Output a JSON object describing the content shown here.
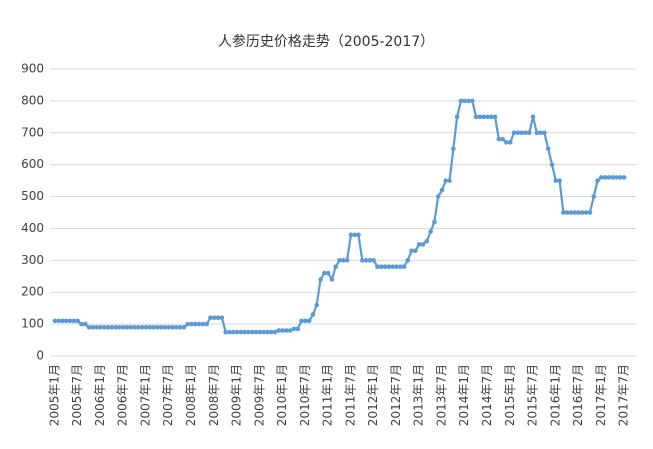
{
  "chart_data": {
    "type": "line",
    "title": "人参历史价格走势（2005-2017）",
    "categories": [
      "2005年1月",
      null,
      null,
      null,
      null,
      null,
      "2005年7月",
      null,
      null,
      null,
      null,
      null,
      "2006年1月",
      null,
      null,
      null,
      null,
      null,
      "2006年7月",
      null,
      null,
      null,
      null,
      null,
      "2007年1月",
      null,
      null,
      null,
      null,
      null,
      "2007年7月",
      null,
      null,
      null,
      null,
      null,
      "2008年1月",
      null,
      null,
      null,
      null,
      null,
      "2008年7月",
      null,
      null,
      null,
      null,
      null,
      "2009年1月",
      null,
      null,
      null,
      null,
      null,
      "2009年7月",
      null,
      null,
      null,
      null,
      null,
      "2010年1月",
      null,
      null,
      null,
      null,
      null,
      "2010年7月",
      null,
      null,
      null,
      null,
      null,
      "2011年1月",
      null,
      null,
      null,
      null,
      null,
      "2011年7月",
      null,
      null,
      null,
      null,
      null,
      "2012年1月",
      null,
      null,
      null,
      null,
      null,
      "2012年7月",
      null,
      null,
      null,
      null,
      null,
      "2013年1月",
      null,
      null,
      null,
      null,
      null,
      "2013年7月",
      null,
      null,
      null,
      null,
      null,
      "2014年1月",
      null,
      null,
      null,
      null,
      null,
      "2014年7月",
      null,
      null,
      null,
      null,
      null,
      "2015年1月",
      null,
      null,
      null,
      null,
      null,
      "2015年7月",
      null,
      null,
      null,
      null,
      null,
      "2016年1月",
      null,
      null,
      null,
      null,
      null,
      "2016年7月",
      null,
      null,
      null,
      null,
      null,
      "2017年1月",
      null,
      null,
      null,
      null,
      null,
      "2017年7月"
    ],
    "values": [
      110,
      110,
      110,
      110,
      110,
      110,
      110,
      100,
      100,
      90,
      90,
      90,
      90,
      90,
      90,
      90,
      90,
      90,
      90,
      90,
      90,
      90,
      90,
      90,
      90,
      90,
      90,
      90,
      90,
      90,
      90,
      90,
      90,
      90,
      90,
      100,
      100,
      100,
      100,
      100,
      100,
      120,
      120,
      120,
      120,
      75,
      75,
      75,
      75,
      75,
      75,
      75,
      75,
      75,
      75,
      75,
      75,
      75,
      75,
      80,
      80,
      80,
      80,
      85,
      85,
      110,
      110,
      110,
      130,
      160,
      240,
      260,
      260,
      240,
      280,
      300,
      300,
      300,
      380,
      380,
      380,
      300,
      300,
      300,
      300,
      280,
      280,
      280,
      280,
      280,
      280,
      280,
      280,
      300,
      330,
      330,
      350,
      350,
      360,
      390,
      420,
      500,
      520,
      550,
      550,
      650,
      750,
      800,
      800,
      800,
      800,
      750,
      750,
      750,
      750,
      750,
      750,
      680,
      680,
      670,
      670,
      700,
      700,
      700,
      700,
      700,
      750,
      700,
      700,
      700,
      650,
      600,
      550,
      550,
      450,
      450,
      450,
      450,
      450,
      450,
      450,
      450,
      500,
      550,
      560,
      560,
      560,
      560,
      560,
      560,
      560
    ],
    "color": "#5b9bd5",
    "ylim": [
      0,
      900
    ],
    "yticks": [
      0,
      100,
      200,
      300,
      400,
      500,
      600,
      700,
      800,
      900
    ],
    "grid": true
  }
}
